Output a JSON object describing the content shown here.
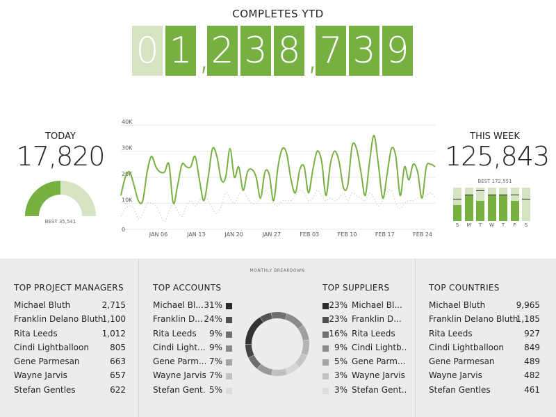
{
  "ytd": {
    "title": "COMPLETES YTD",
    "digits": [
      "0",
      "1",
      "2",
      "3",
      "8",
      "7",
      "3",
      "9"
    ],
    "faded_digits": 1,
    "comma": ","
  },
  "today": {
    "label": "TODAY",
    "value": "17,820",
    "best_label": "BEST 35,541",
    "fraction": 0.5
  },
  "this_week": {
    "label": "THIS WEEK",
    "value": "125,843",
    "best_label": "BEST 172,551",
    "days": [
      "S",
      "M",
      "T",
      "W",
      "T",
      "F",
      "S"
    ],
    "fill_fraction": [
      0.48,
      0.77,
      0.6,
      0.77,
      0.77,
      0.6,
      0
    ],
    "best_fraction": [
      0.65,
      0.77,
      0.9,
      0.77,
      0.77,
      0.77,
      0.65
    ]
  },
  "chart_data": {
    "type": "line",
    "title": "",
    "xlabel": "",
    "ylabel": "",
    "y_ticks": [
      "0",
      "10K",
      "20K",
      "30K",
      "40K"
    ],
    "ylim": [
      0,
      40000
    ],
    "x_ticks": [
      "JAN 06",
      "JAN 13",
      "JAN 20",
      "JAN 27",
      "FEB 03",
      "FEB 10",
      "FEB 17",
      "FEB 24"
    ],
    "grid": true,
    "series": [
      {
        "style": "solid",
        "color": "#76b041",
        "values": [
          13000,
          20000,
          22000,
          17000,
          11000,
          11000,
          22000,
          28000,
          24000,
          22000,
          22000,
          25000,
          10000,
          17000,
          25000,
          24000,
          24000,
          28000,
          19000,
          11000,
          20000,
          31000,
          28000,
          19000,
          20000,
          31000,
          20000,
          24000,
          15000,
          22000,
          23000,
          20000,
          12000,
          22000,
          21000,
          11000,
          24000,
          31000,
          29000,
          19000,
          14000,
          23000,
          24000,
          14000,
          23000,
          30000,
          26000,
          13000,
          25000,
          30000,
          26000,
          16000,
          17000,
          32000,
          31000,
          22000,
          13000,
          26000,
          36000,
          25000,
          12000,
          21000,
          31000,
          28000,
          13000,
          24000,
          19000,
          25000,
          22000,
          12000,
          24000,
          25000,
          24000
        ]
      },
      {
        "style": "dotted",
        "color": "#c9d6bd",
        "values": [
          5000,
          8000,
          9000,
          8000,
          4000,
          6000,
          10000,
          10000,
          9000,
          6000,
          3000,
          7000,
          10000,
          7000,
          5000,
          9000,
          11000,
          9000,
          11000,
          13000,
          11000,
          8000,
          6000,
          9000,
          14000,
          12000,
          10000,
          13000,
          15000,
          12000,
          10000,
          10000,
          12000,
          15000,
          13000,
          10000,
          9000,
          11000,
          11000,
          11000,
          13000,
          15000,
          14000,
          11000,
          12000,
          15000,
          13000,
          11000,
          12000,
          11000,
          12000,
          14000,
          11000,
          14000,
          13000,
          12000,
          11000,
          14000,
          12000,
          9000,
          11000,
          14000,
          15000,
          10000,
          8000,
          10000,
          11000,
          11000,
          12000,
          13000,
          13000,
          14000,
          12000
        ]
      }
    ]
  },
  "bottom": {
    "monthly_label": "MONTHLY BREAKDOWN",
    "project_managers": {
      "title": "TOP PROJECT MANAGERS",
      "rows": [
        {
          "name": "Michael Bluth",
          "value": "2,715"
        },
        {
          "name": "Franklin Delano Bluth",
          "value": "1,100"
        },
        {
          "name": "Rita Leeds",
          "value": "1,012"
        },
        {
          "name": "Cindi Lightballoon",
          "value": "805"
        },
        {
          "name": "Gene Parmesan",
          "value": "663"
        },
        {
          "name": "Wayne Jarvis",
          "value": "657"
        },
        {
          "name": "Stefan Gentles",
          "value": "622"
        }
      ]
    },
    "accounts": {
      "title": "TOP ACCOUNTS",
      "rows": [
        {
          "name": "Michael Bl...",
          "pct": "31%",
          "color": "#2b2b2b"
        },
        {
          "name": "Franklin D...",
          "pct": "24%",
          "color": "#505050"
        },
        {
          "name": "Rita Leeds",
          "pct": "9%",
          "color": "#707070"
        },
        {
          "name": "Cindi Light...",
          "pct": "9%",
          "color": "#8a8a8a"
        },
        {
          "name": "Gene Parm...",
          "pct": "7%",
          "color": "#a4a4a4"
        },
        {
          "name": "Wayne Jarvis",
          "pct": "7%",
          "color": "#c2c2c2"
        },
        {
          "name": "Stefan Gent...",
          "pct": "5%",
          "color": "#dcdcdc"
        }
      ]
    },
    "suppliers": {
      "title": "TOP SUPPLIERS",
      "rows": [
        {
          "name": "Michael Bl...",
          "pct": "23%",
          "color": "#2b2b2b"
        },
        {
          "name": "Franklin D...",
          "pct": "23%",
          "color": "#505050"
        },
        {
          "name": "Rita Leeds",
          "pct": "16%",
          "color": "#707070"
        },
        {
          "name": "Cindi Lightb...",
          "pct": "9%",
          "color": "#8a8a8a"
        },
        {
          "name": "Gene Parm...",
          "pct": "5%",
          "color": "#a4a4a4"
        },
        {
          "name": "Wayne Jarvis",
          "pct": "3%",
          "color": "#c2c2c2"
        },
        {
          "name": "Stefan Gent...",
          "pct": "3%",
          "color": "#dcdcdc"
        }
      ]
    },
    "countries": {
      "title": "TOP COUNTRIES",
      "rows": [
        {
          "name": "Michael Bluth",
          "value": "9,965"
        },
        {
          "name": "Franklin Delano Bluth",
          "value": "1,185"
        },
        {
          "name": "Rita Leeds",
          "value": "927"
        },
        {
          "name": "Cindi Lightballoon",
          "value": "849"
        },
        {
          "name": "Gene Parmesan",
          "value": "489"
        },
        {
          "name": "Wayne Jarvis",
          "value": "482"
        },
        {
          "name": "Stefan Gentles",
          "value": "461"
        }
      ]
    },
    "donut_colors": {
      "track": "#bdbdbd",
      "arc": "#333333"
    }
  }
}
